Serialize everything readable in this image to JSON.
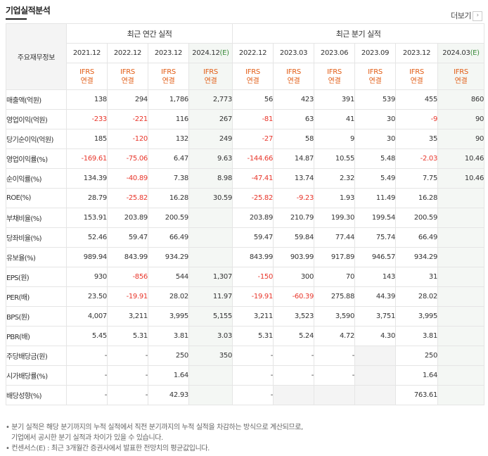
{
  "header": {
    "title": "기업실적분석",
    "more_label": "더보기",
    "more_icon": "arrow-right-icon"
  },
  "table": {
    "corner_label": "주요재무정보",
    "annual_group": "최근 연간 실적",
    "quarter_group": "최근 분기 실적",
    "columns": [
      {
        "period": "2021.12",
        "ifrs": "IFRS",
        "basis": "연결",
        "estimate": false
      },
      {
        "period": "2022.12",
        "ifrs": "IFRS",
        "basis": "연결",
        "estimate": false
      },
      {
        "period": "2023.12",
        "ifrs": "IFRS",
        "basis": "연결",
        "estimate": false
      },
      {
        "period": "2024.12",
        "period_suffix": "(E)",
        "ifrs": "IFRS",
        "basis": "연결",
        "estimate": true
      },
      {
        "period": "2022.12",
        "ifrs": "IFRS",
        "basis": "연결",
        "estimate": false
      },
      {
        "period": "2023.03",
        "ifrs": "IFRS",
        "basis": "연결",
        "estimate": false
      },
      {
        "period": "2023.06",
        "ifrs": "IFRS",
        "basis": "연결",
        "estimate": false
      },
      {
        "period": "2023.09",
        "ifrs": "IFRS",
        "basis": "연결",
        "estimate": false
      },
      {
        "period": "2023.12",
        "ifrs": "IFRS",
        "basis": "연결",
        "estimate": false
      },
      {
        "period": "2024.03",
        "period_suffix": "(E)",
        "ifrs": "IFRS",
        "basis": "연결",
        "estimate": true
      }
    ],
    "rows": [
      {
        "label": "매출액(억원)",
        "values": [
          "138",
          "294",
          "1,786",
          "2,773",
          "56",
          "423",
          "391",
          "539",
          "455",
          "860"
        ]
      },
      {
        "label": "영업이익(억원)",
        "values": [
          "-233",
          "-221",
          "116",
          "267",
          "-81",
          "63",
          "41",
          "30",
          "-9",
          "90"
        ]
      },
      {
        "label": "당기순이익(억원)",
        "values": [
          "185",
          "-120",
          "132",
          "249",
          "-27",
          "58",
          "9",
          "30",
          "35",
          "90"
        ]
      },
      {
        "label": "영업이익률(%)",
        "values": [
          "-169.61",
          "-75.06",
          "6.47",
          "9.63",
          "-144.66",
          "14.87",
          "10.55",
          "5.48",
          "-2.03",
          "10.46"
        ]
      },
      {
        "label": "순이익률(%)",
        "values": [
          "134.39",
          "-40.89",
          "7.38",
          "8.98",
          "-47.41",
          "13.74",
          "2.32",
          "5.49",
          "7.75",
          "10.46"
        ]
      },
      {
        "label": "ROE(%)",
        "values": [
          "28.79",
          "-25.82",
          "16.28",
          "30.59",
          "-25.82",
          "-9.23",
          "1.93",
          "11.49",
          "16.28",
          ""
        ]
      },
      {
        "label": "부채비율(%)",
        "values": [
          "153.91",
          "203.89",
          "200.59",
          "",
          "203.89",
          "210.79",
          "199.30",
          "199.54",
          "200.59",
          ""
        ]
      },
      {
        "label": "당좌비율(%)",
        "values": [
          "52.46",
          "59.47",
          "66.49",
          "",
          "59.47",
          "59.84",
          "77.44",
          "75.74",
          "66.49",
          ""
        ]
      },
      {
        "label": "유보율(%)",
        "values": [
          "989.94",
          "843.99",
          "934.29",
          "",
          "843.99",
          "903.99",
          "917.89",
          "946.57",
          "934.29",
          ""
        ]
      },
      {
        "label": "EPS(원)",
        "values": [
          "930",
          "-856",
          "544",
          "1,307",
          "-150",
          "300",
          "70",
          "143",
          "31",
          ""
        ]
      },
      {
        "label": "PER(배)",
        "values": [
          "23.50",
          "-19.91",
          "28.02",
          "11.97",
          "-19.91",
          "-60.39",
          "275.88",
          "44.39",
          "28.02",
          ""
        ]
      },
      {
        "label": "BPS(원)",
        "values": [
          "4,007",
          "3,211",
          "3,995",
          "5,155",
          "3,211",
          "3,523",
          "3,590",
          "3,751",
          "3,995",
          ""
        ]
      },
      {
        "label": "PBR(배)",
        "values": [
          "5.45",
          "5.31",
          "3.81",
          "3.03",
          "5.31",
          "5.24",
          "4.72",
          "4.30",
          "3.81",
          ""
        ]
      },
      {
        "label": "주당배당금(원)",
        "values": [
          "-",
          "-",
          "250",
          "350",
          "-",
          "-",
          "-",
          "",
          "250",
          ""
        ]
      },
      {
        "label": "시가배당률(%)",
        "values": [
          "-",
          "-",
          "1.64",
          "",
          "-",
          "-",
          "-",
          "",
          "1.64",
          ""
        ]
      },
      {
        "label": "배당성향(%)",
        "values": [
          "-",
          "-",
          "42.93",
          "",
          "-",
          "",
          "",
          "",
          "763.61",
          ""
        ]
      }
    ]
  },
  "notes": [
    "• 분기 실적은 해당 분기까지의 누적 실적에서 직전 분기까지의 누적 실적을 차감하는 방식으로 계산되므로,",
    "기업에서 공시한 분기 실적과 차이가 있을 수 있습니다.",
    "• 컨센서스(E) : 최근 3개월간 증권사에서 발표한 전망치의 평균값입니다."
  ],
  "colors": {
    "negative": "#e8352a",
    "accounting_label": "#e25c14",
    "estimate_bg": "#f4f7f4",
    "header_bg": "#f4f4f4"
  }
}
